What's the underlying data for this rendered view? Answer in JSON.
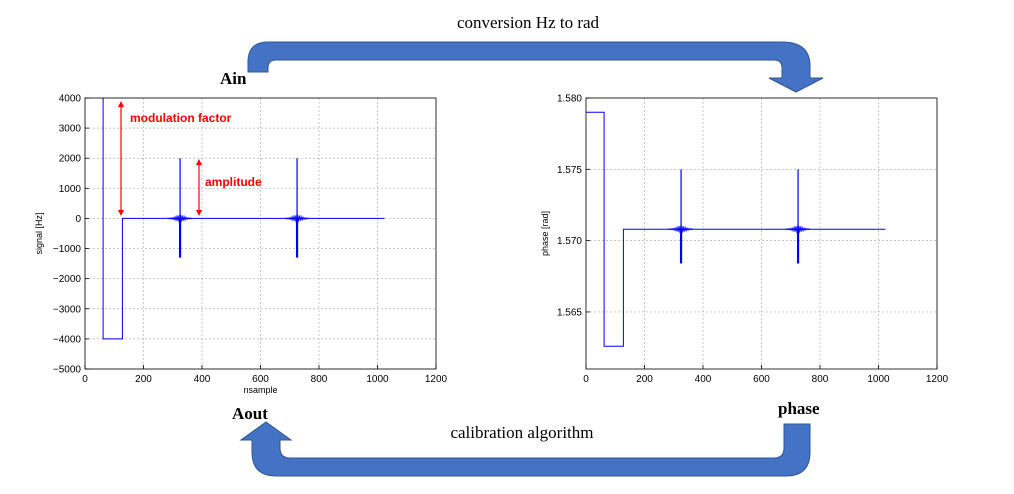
{
  "labels": {
    "top_arrow": "conversion Hz to rad",
    "bottom_arrow": "calibration algorithm",
    "ain": "Ain",
    "aout": "Aout",
    "phase": "phase"
  },
  "annotations": {
    "modulation": "modulation factor",
    "amplitude": "amplitude",
    "color": "#ff0000"
  },
  "colors": {
    "arrow": "#4472c4",
    "arrow_edge": "#2f5597",
    "signal": "#0000ff"
  },
  "chart_data": [
    {
      "type": "line",
      "name": "left",
      "xlabel": "nsample",
      "ylabel": "signal [Hz]",
      "xlim": [
        0,
        1200
      ],
      "ylim": [
        -5000,
        4000
      ],
      "x_ticks": [
        "0",
        "200",
        "400",
        "600",
        "800",
        "1000",
        "1200"
      ],
      "y_ticks": [
        "4000",
        "3000",
        "2000",
        "1000",
        "0",
        "−1000",
        "−2000",
        "−3000",
        "−4000",
        "−5000"
      ],
      "x_tick_values": [
        0,
        200,
        400,
        600,
        800,
        1000,
        1200
      ],
      "y_tick_values": [
        4000,
        3000,
        2000,
        1000,
        0,
        -1000,
        -2000,
        -3000,
        -4000,
        -5000
      ],
      "grid": true,
      "step": {
        "x": [
          62,
          62,
          128,
          128,
          1024
        ],
        "y": [
          4000,
          -4000,
          -4000,
          0,
          0
        ]
      },
      "spikes": [
        {
          "x": 325,
          "top": 2000,
          "bottom": -1300,
          "base": 0
        },
        {
          "x": 725,
          "top": 2000,
          "bottom": -1300,
          "base": 0
        }
      ]
    },
    {
      "type": "line",
      "name": "right",
      "xlabel": "",
      "ylabel": "phase [rad]",
      "xlim": [
        0,
        1200
      ],
      "ylim": [
        1.561,
        1.58
      ],
      "x_ticks": [
        "0",
        "200",
        "400",
        "600",
        "800",
        "1000",
        "1200"
      ],
      "y_ticks": [
        "1.580",
        "1.575",
        "1.570",
        "1.565"
      ],
      "x_tick_values": [
        0,
        200,
        400,
        600,
        800,
        1000,
        1200
      ],
      "y_tick_values": [
        1.58,
        1.575,
        1.57,
        1.565
      ],
      "grid": true,
      "step": {
        "x": [
          0,
          62,
          62,
          128,
          128,
          1024
        ],
        "y": [
          1.579,
          1.579,
          1.5626,
          1.5626,
          1.5708,
          1.5708
        ]
      },
      "spikes": [
        {
          "x": 325,
          "top": 1.575,
          "bottom": 1.5684,
          "base": 1.5708
        },
        {
          "x": 725,
          "top": 1.575,
          "bottom": 1.5684,
          "base": 1.5708
        }
      ]
    }
  ]
}
